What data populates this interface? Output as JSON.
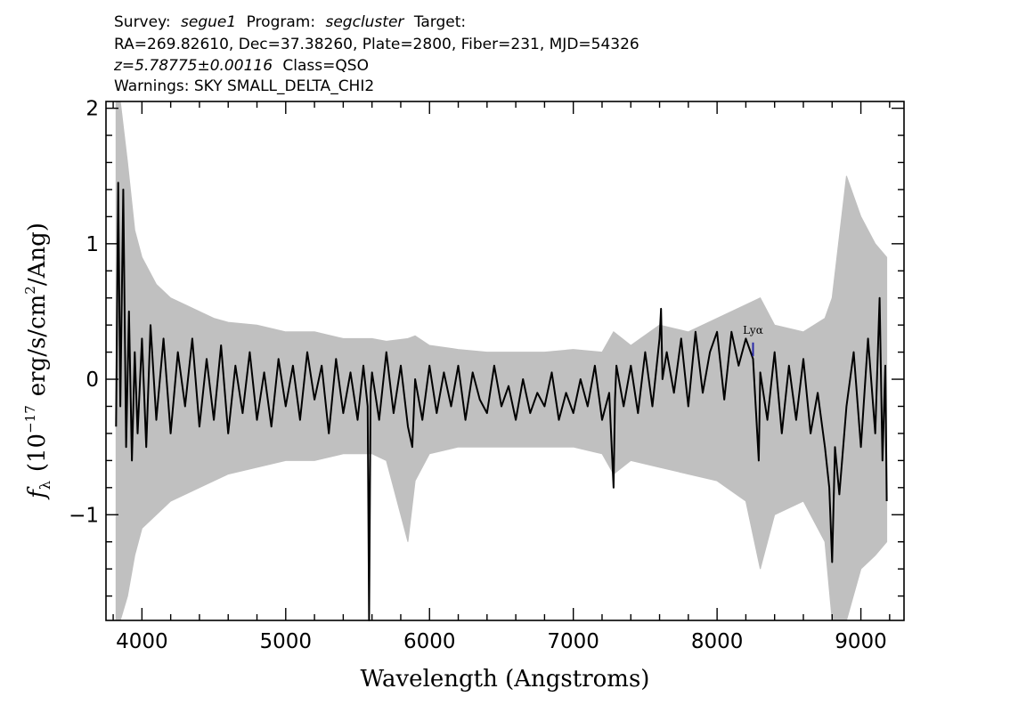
{
  "header": {
    "survey_label": "Survey:",
    "survey": "segue1",
    "program_label": "Program:",
    "program": "segcluster",
    "target_label": "Target:",
    "coords": "RA=269.82610, Dec=37.38260, Plate=2800, Fiber=231, MJD=54326",
    "redshift": "z=5.78775±0.00116",
    "class": "Class=QSO",
    "warnings": "Warnings: SKY SMALL_DELTA_CHI2"
  },
  "chart_data": {
    "type": "line",
    "xlabel": "Wavelength (Angstroms)",
    "ylabel": {
      "symbol": "f",
      "symbol_sub": "λ",
      "text_before_exp": "(10",
      "exponent": "−17",
      "text_mid": "erg/s/cm",
      "unit_exp": "2",
      "text_after": "/Ang)"
    },
    "xlim": [
      3750,
      9300
    ],
    "ylim": [
      -1.78,
      2.05
    ],
    "x_ticks": [
      4000,
      5000,
      6000,
      7000,
      8000,
      9000
    ],
    "x_tick_labels": [
      "4000",
      "5000",
      "6000",
      "7000",
      "8000",
      "9000"
    ],
    "y_ticks": [
      -1,
      0,
      1,
      2
    ],
    "y_tick_labels": [
      "−1",
      "0",
      "1",
      "2"
    ],
    "x_minor_step": 200,
    "y_minor_step": 0.2,
    "colors": {
      "flux": "#000000",
      "noise": "#c0c0c0",
      "line_marker": "#2a2aa8"
    },
    "series": [
      {
        "role": "flux",
        "x": [
          3820,
          3835,
          3850,
          3870,
          3890,
          3910,
          3930,
          3950,
          3970,
          4000,
          4030,
          4060,
          4100,
          4150,
          4200,
          4250,
          4300,
          4350,
          4400,
          4450,
          4500,
          4550,
          4600,
          4650,
          4700,
          4750,
          4800,
          4850,
          4900,
          4950,
          5000,
          5050,
          5100,
          5150,
          5200,
          5250,
          5300,
          5350,
          5400,
          5450,
          5500,
          5540,
          5570,
          5580,
          5590,
          5600,
          5650,
          5700,
          5750,
          5800,
          5850,
          5880,
          5900,
          5950,
          6000,
          6050,
          6100,
          6150,
          6200,
          6250,
          6300,
          6350,
          6400,
          6450,
          6500,
          6550,
          6600,
          6650,
          6700,
          6750,
          6800,
          6850,
          6900,
          6950,
          7000,
          7050,
          7100,
          7150,
          7200,
          7250,
          7280,
          7290,
          7300,
          7350,
          7400,
          7450,
          7500,
          7550,
          7600,
          7610,
          7620,
          7650,
          7700,
          7750,
          7800,
          7850,
          7900,
          7950,
          8000,
          8050,
          8100,
          8150,
          8200,
          8250,
          8290,
          8300,
          8350,
          8400,
          8450,
          8500,
          8550,
          8600,
          8650,
          8700,
          8750,
          8780,
          8800,
          8820,
          8850,
          8900,
          8950,
          9000,
          9050,
          9100,
          9130,
          9150,
          9170,
          9180
        ],
        "y": [
          -0.35,
          1.45,
          -0.2,
          1.4,
          -0.5,
          0.5,
          -0.6,
          0.2,
          -0.4,
          0.3,
          -0.5,
          0.4,
          -0.3,
          0.3,
          -0.4,
          0.2,
          -0.2,
          0.3,
          -0.35,
          0.15,
          -0.3,
          0.25,
          -0.4,
          0.1,
          -0.25,
          0.2,
          -0.3,
          0.05,
          -0.35,
          0.15,
          -0.2,
          0.1,
          -0.3,
          0.2,
          -0.15,
          0.1,
          -0.4,
          0.15,
          -0.25,
          0.05,
          -0.3,
          0.1,
          -0.2,
          -1.78,
          -0.1,
          0.05,
          -0.3,
          0.2,
          -0.25,
          0.1,
          -0.35,
          -0.5,
          0.0,
          -0.3,
          0.1,
          -0.25,
          0.05,
          -0.2,
          0.1,
          -0.3,
          0.05,
          -0.15,
          -0.25,
          0.1,
          -0.2,
          -0.05,
          -0.3,
          0.0,
          -0.25,
          -0.1,
          -0.2,
          0.05,
          -0.3,
          -0.1,
          -0.25,
          0.0,
          -0.2,
          0.1,
          -0.3,
          -0.1,
          -0.8,
          -0.15,
          0.1,
          -0.2,
          0.1,
          -0.25,
          0.2,
          -0.2,
          0.3,
          0.52,
          0.0,
          0.2,
          -0.1,
          0.3,
          -0.2,
          0.35,
          -0.1,
          0.2,
          0.35,
          -0.15,
          0.35,
          0.1,
          0.3,
          0.15,
          -0.6,
          0.05,
          -0.3,
          0.2,
          -0.4,
          0.1,
          -0.3,
          0.15,
          -0.4,
          -0.1,
          -0.5,
          -0.8,
          -1.35,
          -0.5,
          -0.85,
          -0.2,
          0.2,
          -0.5,
          0.3,
          -0.4,
          0.6,
          -0.6,
          0.1,
          -0.9
        ]
      },
      {
        "role": "noise",
        "x": [
          3820,
          3850,
          3900,
          3950,
          4000,
          4100,
          4200,
          4300,
          4400,
          4500,
          4600,
          4800,
          5000,
          5200,
          5400,
          5550,
          5600,
          5700,
          5850,
          5900,
          6000,
          6200,
          6400,
          6600,
          6800,
          7000,
          7200,
          7280,
          7400,
          7600,
          7800,
          8000,
          8200,
          8300,
          8400,
          8600,
          8750,
          8800,
          8900,
          9000,
          9100,
          9180
        ],
        "high": [
          2.05,
          2.05,
          1.6,
          1.1,
          0.9,
          0.7,
          0.6,
          0.55,
          0.5,
          0.45,
          0.42,
          0.4,
          0.35,
          0.35,
          0.3,
          0.3,
          0.3,
          0.28,
          0.3,
          0.32,
          0.25,
          0.22,
          0.2,
          0.2,
          0.2,
          0.22,
          0.2,
          0.35,
          0.25,
          0.4,
          0.35,
          0.45,
          0.55,
          0.6,
          0.4,
          0.35,
          0.45,
          0.6,
          1.5,
          1.2,
          1.0,
          0.9
        ],
        "low": [
          -1.78,
          -1.78,
          -1.6,
          -1.3,
          -1.1,
          -1.0,
          -0.9,
          -0.85,
          -0.8,
          -0.75,
          -0.7,
          -0.65,
          -0.6,
          -0.6,
          -0.55,
          -0.55,
          -0.55,
          -0.6,
          -1.2,
          -0.75,
          -0.55,
          -0.5,
          -0.5,
          -0.5,
          -0.5,
          -0.5,
          -0.55,
          -0.7,
          -0.6,
          -0.65,
          -0.7,
          -0.75,
          -0.9,
          -1.4,
          -1.0,
          -0.9,
          -1.2,
          -1.78,
          -1.78,
          -1.4,
          -1.3,
          -1.2
        ]
      }
    ],
    "annotations": [
      {
        "label": "Lyα",
        "x": 8250,
        "y_top": 0.35,
        "y_bottom": 0.17
      }
    ]
  }
}
